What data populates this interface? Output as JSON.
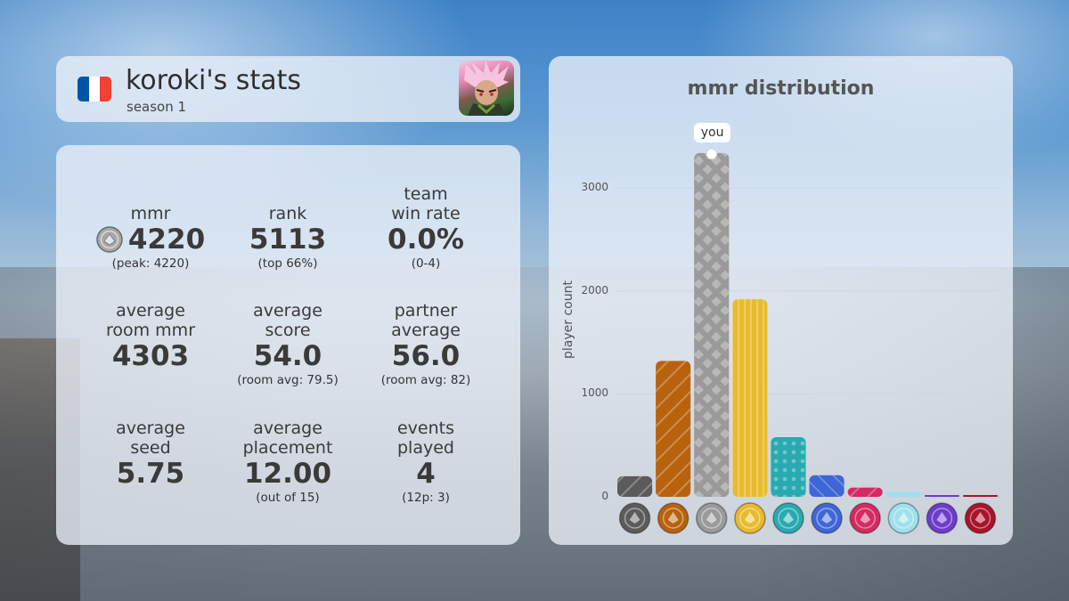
{
  "header": {
    "player_name": "koroki's stats",
    "season": "season 1",
    "flag_colors": [
      "#0055A4",
      "#FFFFFF",
      "#EF4135"
    ]
  },
  "stats": {
    "mmr": {
      "label": "mmr",
      "value": "4220",
      "sub": "(peak: 4220)",
      "icon": "silver-rank-icon"
    },
    "rank": {
      "label": "rank",
      "value": "5113",
      "sub": "(top 66%)"
    },
    "team_win_rate": {
      "label_line1": "team",
      "label_line2": "win rate",
      "value": "0.0%",
      "sub": "(0-4)"
    },
    "avg_room_mmr": {
      "label_line1": "average",
      "label_line2": "room mmr",
      "value": "4303"
    },
    "avg_score": {
      "label_line1": "average",
      "label_line2": "score",
      "value": "54.0",
      "sub": "(room avg: 79.5)"
    },
    "partner_avg": {
      "label_line1": "partner",
      "label_line2": "average",
      "value": "56.0",
      "sub": "(room avg: 82)"
    },
    "avg_seed": {
      "label_line1": "average",
      "label_line2": "seed",
      "value": "5.75"
    },
    "avg_placement": {
      "label_line1": "average",
      "label_line2": "placement",
      "value": "12.00",
      "sub": "(out of 15)"
    },
    "events_played": {
      "label_line1": "events",
      "label_line2": "played",
      "value": "4",
      "sub": "(12p: 3)"
    }
  },
  "chart_data": {
    "type": "bar",
    "title": "mmr distribution",
    "ylabel": "player count",
    "xlabel": "",
    "ylim": [
      0,
      3400
    ],
    "yticks": [
      "0",
      "1000",
      "2000",
      "3000"
    ],
    "categories": [
      "iron",
      "bronze",
      "silver",
      "gold",
      "platinum",
      "sapphire",
      "ruby",
      "diamond",
      "master",
      "grandmaster"
    ],
    "values": [
      200,
      1320,
      3340,
      1920,
      580,
      210,
      90,
      50,
      15,
      15
    ],
    "colors": [
      "#5b5b5b",
      "#b8620e",
      "#9a9a9a",
      "#e8bb2e",
      "#28aab0",
      "#3f66d6",
      "#d42a61",
      "#9fe0ec",
      "#6d3cc9",
      "#a8142b"
    ],
    "highlight_index": 2,
    "highlight_label": "you"
  }
}
